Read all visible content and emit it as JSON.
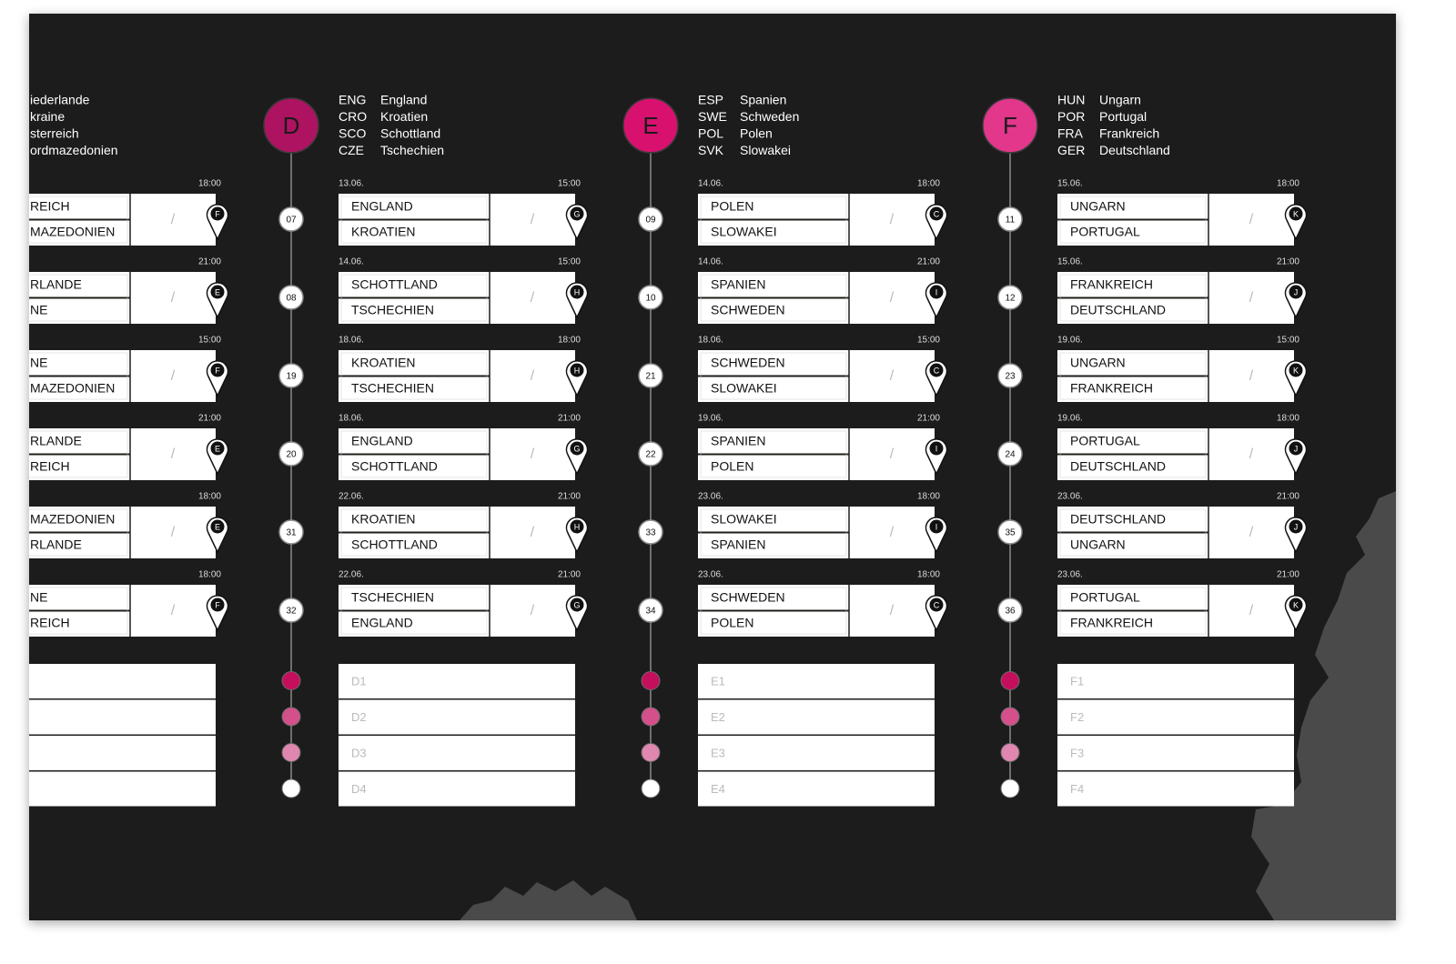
{
  "score_separator": "/",
  "groups": [
    {
      "teams": [
        {
          "name": "iederlande"
        },
        {
          "name": "kraine"
        },
        {
          "name": "sterreich"
        },
        {
          "name": "ordmazedonien"
        }
      ],
      "matches": [
        {
          "time": "18:00",
          "home": "REICH",
          "away": "MAZEDONIEN",
          "venue": "F"
        },
        {
          "time": "21:00",
          "home": "RLANDE",
          "away": "NE",
          "venue": "E"
        },
        {
          "time": "15:00",
          "home": "NE",
          "away": "MAZEDONIEN",
          "venue": "F"
        },
        {
          "time": "21:00",
          "home": "RLANDE",
          "away": "REICH",
          "venue": "E"
        },
        {
          "time": "18:00",
          "home": "MAZEDONIEN",
          "away": "RLANDE",
          "venue": "E"
        },
        {
          "time": "18:00",
          "home": "NE",
          "away": "REICH",
          "venue": "F"
        }
      ]
    },
    {
      "letter": "D",
      "teams": [
        {
          "code": "ENG",
          "name": "England"
        },
        {
          "code": "CRO",
          "name": "Kroatien"
        },
        {
          "code": "SCO",
          "name": "Schottland"
        },
        {
          "code": "CZE",
          "name": "Tschechien"
        }
      ],
      "matches": [
        {
          "number": "07",
          "date": "13.06.",
          "time": "15:00",
          "home": "ENGLAND",
          "away": "KROATIEN",
          "venue": "G"
        },
        {
          "number": "08",
          "date": "14.06.",
          "time": "15:00",
          "home": "SCHOTTLAND",
          "away": "TSCHECHIEN",
          "venue": "H"
        },
        {
          "number": "19",
          "date": "18.06.",
          "time": "18:00",
          "home": "KROATIEN",
          "away": "TSCHECHIEN",
          "venue": "H"
        },
        {
          "number": "20",
          "date": "18.06.",
          "time": "21:00",
          "home": "ENGLAND",
          "away": "SCHOTTLAND",
          "venue": "G"
        },
        {
          "number": "31",
          "date": "22.06.",
          "time": "21:00",
          "home": "KROATIEN",
          "away": "SCHOTTLAND",
          "venue": "H"
        },
        {
          "number": "32",
          "date": "22.06.",
          "time": "21:00",
          "home": "TSCHECHIEN",
          "away": "ENGLAND",
          "venue": "G"
        }
      ],
      "standings": [
        "D1",
        "D2",
        "D3",
        "D4"
      ]
    },
    {
      "letter": "E",
      "teams": [
        {
          "code": "ESP",
          "name": "Spanien"
        },
        {
          "code": "SWE",
          "name": "Schweden"
        },
        {
          "code": "POL",
          "name": "Polen"
        },
        {
          "code": "SVK",
          "name": "Slowakei"
        }
      ],
      "matches": [
        {
          "number": "09",
          "date": "14.06.",
          "time": "18:00",
          "home": "POLEN",
          "away": "SLOWAKEI",
          "venue": "C"
        },
        {
          "number": "10",
          "date": "14.06.",
          "time": "21:00",
          "home": "SPANIEN",
          "away": "SCHWEDEN",
          "venue": "I"
        },
        {
          "number": "21",
          "date": "18.06.",
          "time": "15:00",
          "home": "SCHWEDEN",
          "away": "SLOWAKEI",
          "venue": "C"
        },
        {
          "number": "22",
          "date": "19.06.",
          "time": "21:00",
          "home": "SPANIEN",
          "away": "POLEN",
          "venue": "I"
        },
        {
          "number": "33",
          "date": "23.06.",
          "time": "18:00",
          "home": "SLOWAKEI",
          "away": "SPANIEN",
          "venue": "I"
        },
        {
          "number": "34",
          "date": "23.06.",
          "time": "18:00",
          "home": "SCHWEDEN",
          "away": "POLEN",
          "venue": "C"
        }
      ],
      "standings": [
        "E1",
        "E2",
        "E3",
        "E4"
      ]
    },
    {
      "letter": "F",
      "teams": [
        {
          "code": "HUN",
          "name": "Ungarn"
        },
        {
          "code": "POR",
          "name": "Portugal"
        },
        {
          "code": "FRA",
          "name": "Frankreich"
        },
        {
          "code": "GER",
          "name": "Deutschland"
        }
      ],
      "matches": [
        {
          "number": "11",
          "date": "15.06.",
          "time": "18:00",
          "home": "UNGARN",
          "away": "PORTUGAL",
          "venue": "K"
        },
        {
          "number": "12",
          "date": "15.06.",
          "time": "21:00",
          "home": "FRANKREICH",
          "away": "DEUTSCHLAND",
          "venue": "J"
        },
        {
          "number": "23",
          "date": "19.06.",
          "time": "15:00",
          "home": "UNGARN",
          "away": "FRANKREICH",
          "venue": "K"
        },
        {
          "number": "24",
          "date": "19.06.",
          "time": "18:00",
          "home": "PORTUGAL",
          "away": "DEUTSCHLAND",
          "venue": "J"
        },
        {
          "number": "35",
          "date": "23.06.",
          "time": "21:00",
          "home": "DEUTSCHLAND",
          "away": "UNGARN",
          "venue": "J"
        },
        {
          "number": "36",
          "date": "23.06.",
          "time": "21:00",
          "home": "PORTUGAL",
          "away": "FRANKREICH",
          "venue": "K"
        }
      ],
      "standings": [
        "F1",
        "F2",
        "F3",
        "F4"
      ]
    }
  ]
}
